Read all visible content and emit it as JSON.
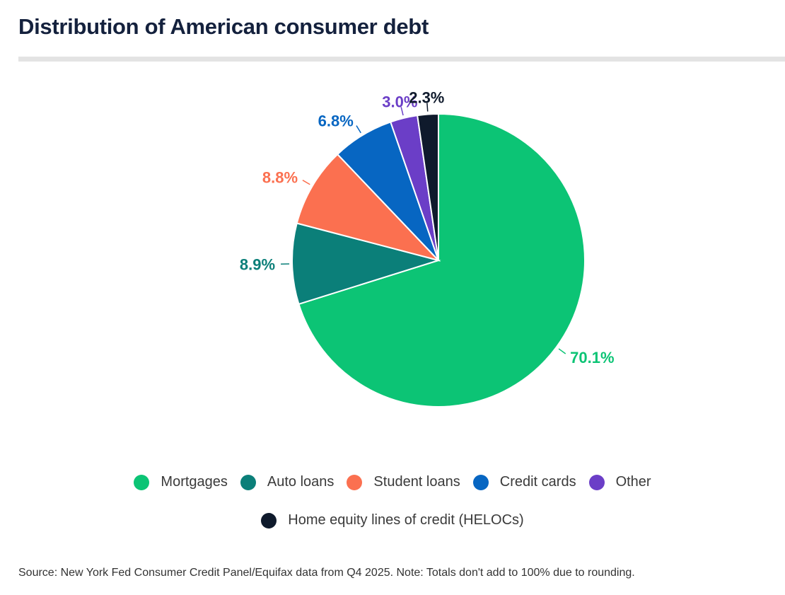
{
  "title": "Distribution of American consumer debt",
  "source": "Source: New York Fed Consumer Credit Panel/Equifax data from Q4 2025. Note: Totals don't add to 100% due to rounding.",
  "chart_data": {
    "type": "pie",
    "title": "Distribution of American consumer debt",
    "unit": "%",
    "start": "top",
    "direction": "clockwise",
    "legend_position": "bottom",
    "slices": [
      {
        "name": "Mortgages",
        "value": 70.1,
        "label": "70.1%",
        "color": "#0cc475"
      },
      {
        "name": "Auto loans",
        "value": 8.9,
        "label": "8.9%",
        "color": "#0b7f79"
      },
      {
        "name": "Student loans",
        "value": 8.8,
        "label": "8.8%",
        "color": "#fb7050"
      },
      {
        "name": "Credit cards",
        "value": 6.8,
        "label": "6.8%",
        "color": "#0766c2"
      },
      {
        "name": "Other",
        "value": 3.0,
        "label": "3.0%",
        "color": "#6b3ec7"
      },
      {
        "name": "Home equity lines of credit (HELOCs)",
        "value": 2.3,
        "label": "2.3%",
        "color": "#0f1a2c"
      }
    ]
  }
}
